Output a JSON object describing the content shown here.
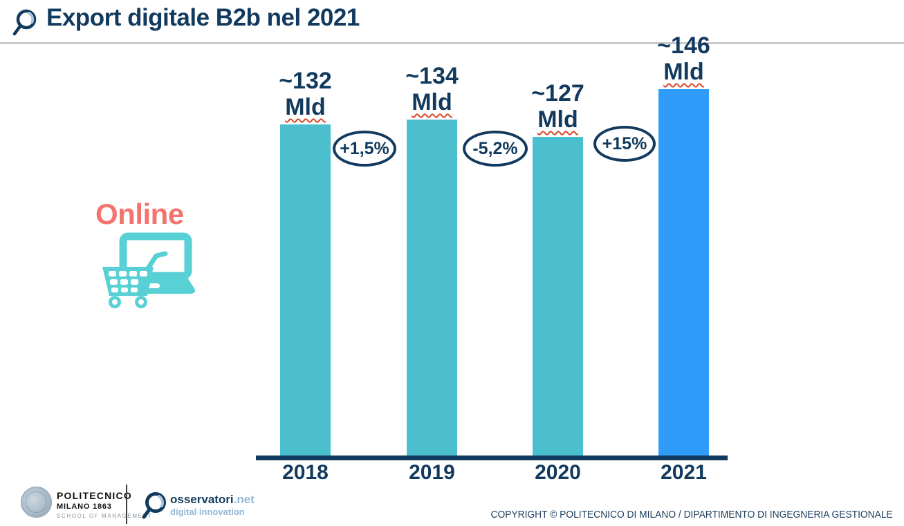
{
  "header": {
    "title": "Export digitale B2b nel 2021"
  },
  "chart_data": {
    "type": "bar",
    "title": "Export digitale B2b nel 2021",
    "categories": [
      "2018",
      "2019",
      "2020",
      "2021"
    ],
    "values": [
      132,
      134,
      127,
      146
    ],
    "value_unit": "Mld",
    "bar_value_labels": [
      {
        "approx": "~132",
        "unit": "Mld"
      },
      {
        "approx": "~134",
        "unit": "Mld"
      },
      {
        "approx": "~127",
        "unit": "Mld"
      },
      {
        "approx": "~146",
        "unit": "Mld"
      }
    ],
    "growth_annotations": [
      "+1,5%",
      "-5,2%",
      "+15%"
    ],
    "bar_colors": [
      "#4bbfce",
      "#4bbfce",
      "#4bbfce",
      "#2f9cfa"
    ],
    "ylim": [
      0,
      150
    ],
    "grid": false,
    "legend": false
  },
  "side": {
    "label": "Online"
  },
  "footer": {
    "politecnico": {
      "line1": "POLITECNICO",
      "line2": "MILANO 1863",
      "line3": "SCHOOL OF MANAGEMENT"
    },
    "osservatori": {
      "brand": "osservatori",
      "tld": ".net",
      "tagline": "digital innovation"
    },
    "copyright": "COPYRIGHT © POLITECNICO DI MILANO / DIPARTIMENTO DI INGEGNERIA GESTIONALE"
  },
  "colors": {
    "navy": "#123a5e",
    "teal_bar": "#4bbfce",
    "blue_bar": "#2f9cfa",
    "coral": "#f4736f",
    "logo_light_blue": "#93b8d5",
    "squiggle_red": "#d9472b"
  }
}
